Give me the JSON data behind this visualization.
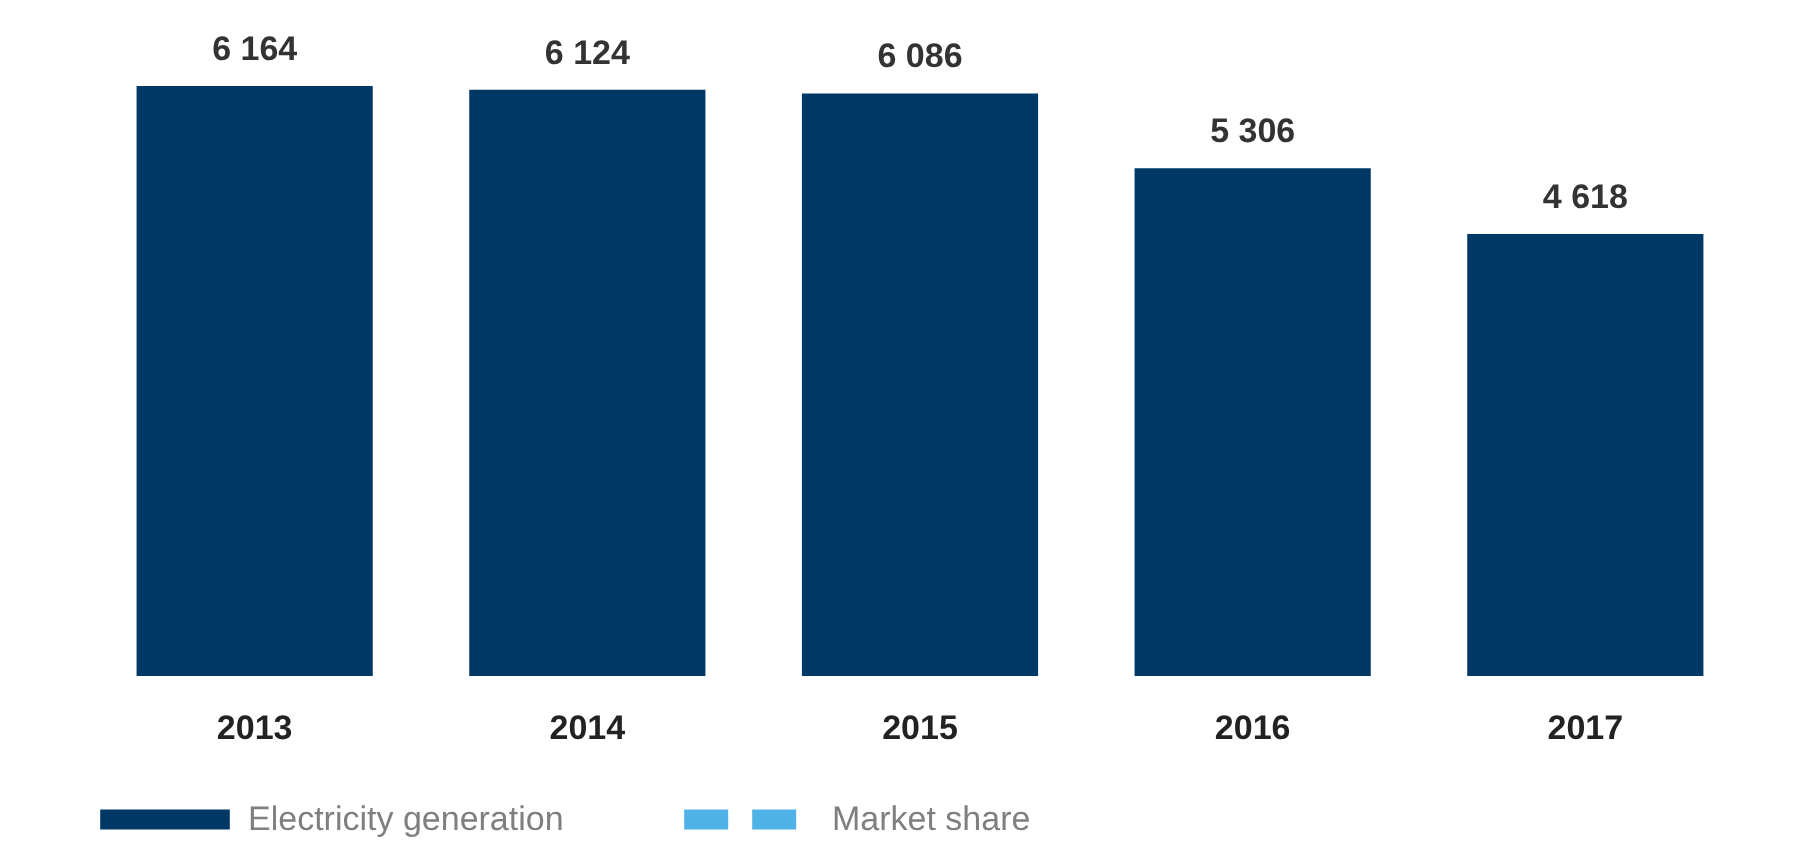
{
  "chart_data": {
    "type": "bar",
    "categories": [
      "2013",
      "2014",
      "2015",
      "2016",
      "2017"
    ],
    "series": [
      {
        "name": "Electricity generation",
        "color": "#003865",
        "values": [
          6164,
          6124,
          6086,
          5306,
          4618
        ],
        "value_labels": [
          "6 164",
          "6 124",
          "6 086",
          "5 306",
          "4 618"
        ]
      },
      {
        "name": "Market share",
        "type": "line",
        "color": "#4fb3e8",
        "line_style": "dashed",
        "values": [
          null,
          null,
          null,
          null,
          null
        ]
      }
    ],
    "legend": "bottom",
    "grid": false
  }
}
